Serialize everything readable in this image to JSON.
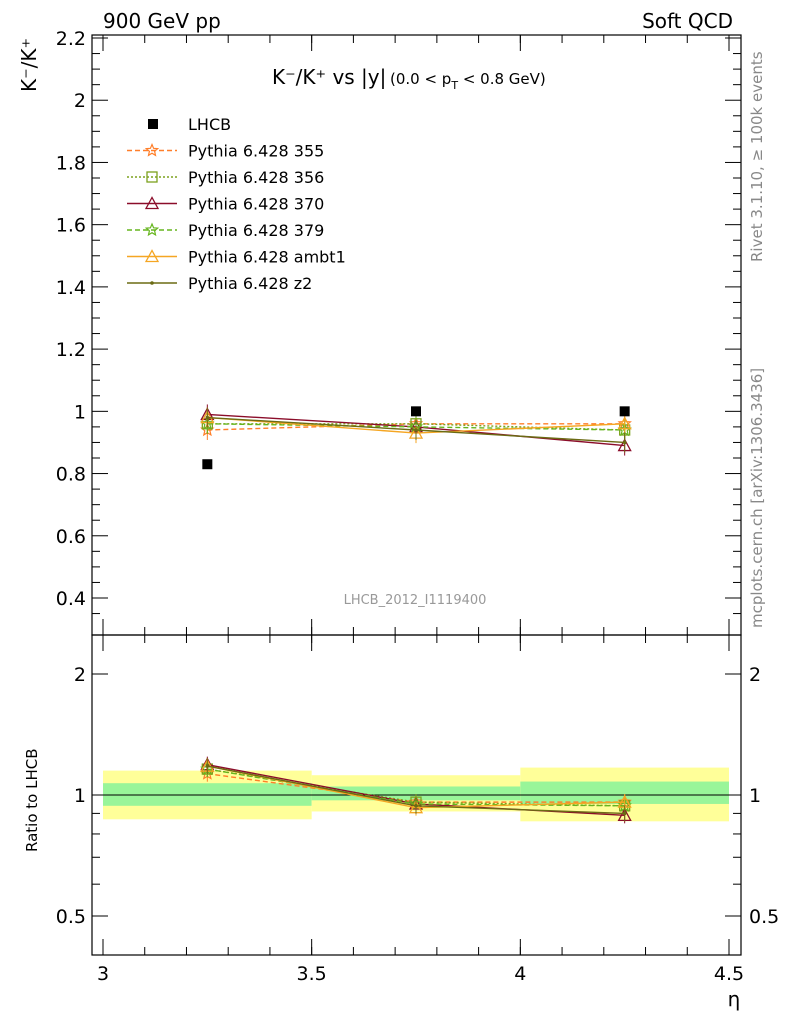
{
  "header": {
    "left": "900 GeV pp",
    "right": "Soft QCD"
  },
  "side": {
    "rivet": "Rivet 3.1.10, ≥ 100k events",
    "mcplots": "mcplots.cern.ch [arXiv:1306.3436]"
  },
  "chart_data": {
    "type": "line",
    "title_main": "K⁻/K⁺ vs |y|",
    "title_sub": "(0.0 < p",
    "title_sub_idx": "T",
    "title_sub_end": " < 0.8 GeV)",
    "ylabel": "K⁻/K⁺",
    "xlabel": "η",
    "analysis_label": "LHCB_2012_I1119400",
    "xlim": [
      3,
      4.5
    ],
    "ylim": [
      0.3,
      2.2
    ],
    "x_ticks": [
      "3",
      "3.5",
      "4",
      "4.5"
    ],
    "y_ticks": [
      "0.4",
      "0.6",
      "0.8",
      "1",
      "1.2",
      "1.4",
      "1.6",
      "1.8",
      "2",
      "2.2"
    ],
    "bins": [
      [
        3.0,
        3.5
      ],
      [
        3.5,
        4.0
      ],
      [
        4.0,
        4.5
      ]
    ],
    "x": [
      3.25,
      3.75,
      4.25
    ],
    "data": {
      "name": "LHCB",
      "values": [
        0.83,
        1.0,
        1.0
      ],
      "color": "#000000"
    },
    "series": [
      {
        "name": "Pythia 6.428 355",
        "values": [
          0.94,
          0.96,
          0.96
        ],
        "color": "#ff7f2a",
        "marker": "star",
        "dash": "5,3"
      },
      {
        "name": "Pythia 6.428 356",
        "values": [
          0.96,
          0.96,
          0.94
        ],
        "color": "#7da21e",
        "marker": "square",
        "dash": "2,2"
      },
      {
        "name": "Pythia 6.428 370",
        "values": [
          0.99,
          0.95,
          0.89
        ],
        "color": "#8b0d2a",
        "marker": "triangle",
        "dash": ""
      },
      {
        "name": "Pythia 6.428 379",
        "values": [
          0.96,
          0.95,
          0.94
        ],
        "color": "#66b51e",
        "marker": "star",
        "dash": "5,3"
      },
      {
        "name": "Pythia 6.428 ambt1",
        "values": [
          0.98,
          0.93,
          0.96
        ],
        "color": "#f5a623",
        "marker": "triangle",
        "dash": ""
      },
      {
        "name": "Pythia 6.428 z2",
        "values": [
          0.98,
          0.94,
          0.9
        ],
        "color": "#6b6b14",
        "marker": "dot",
        "dash": ""
      }
    ],
    "ratio": {
      "ylabel": "Ratio to LHCB",
      "y_ticks": [
        "0.5",
        "1",
        "2"
      ],
      "y_ticks_right": [
        "0.5",
        "1",
        "2"
      ],
      "ylim": [
        0.4,
        2.4
      ],
      "log": true,
      "inner_band": [
        [
          0.94,
          1.07
        ],
        [
          0.97,
          1.05
        ],
        [
          0.95,
          1.08
        ]
      ],
      "outer_band": [
        [
          0.87,
          1.15
        ],
        [
          0.91,
          1.12
        ],
        [
          0.86,
          1.17
        ]
      ],
      "band_colors": {
        "inner": "#99f599",
        "outer": "#ffff99"
      },
      "series_values": [
        [
          1.13,
          0.96,
          0.96
        ],
        [
          1.16,
          0.96,
          0.94
        ],
        [
          1.19,
          0.95,
          0.89
        ],
        [
          1.16,
          0.95,
          0.94
        ],
        [
          1.18,
          0.93,
          0.96
        ],
        [
          1.18,
          0.94,
          0.9
        ]
      ]
    }
  }
}
